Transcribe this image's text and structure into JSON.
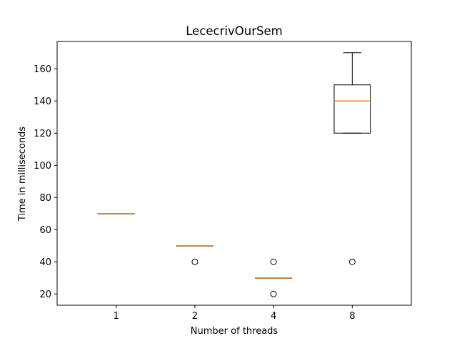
{
  "chart_data": {
    "type": "box",
    "title": "LececrivOurSem",
    "xlabel": "Number of threads",
    "ylabel": "Time in milliseconds",
    "categories": [
      "1",
      "2",
      "4",
      "8"
    ],
    "ylim": [
      13,
      177
    ],
    "yticks": [
      20,
      40,
      60,
      80,
      100,
      120,
      140,
      160
    ],
    "grid": false,
    "boxes": [
      {
        "category": "1",
        "whisker_low": 70,
        "q1": 70,
        "median": 70,
        "q3": 70,
        "whisker_high": 70,
        "outliers": []
      },
      {
        "category": "2",
        "whisker_low": 50,
        "q1": 50,
        "median": 50,
        "q3": 50,
        "whisker_high": 50,
        "outliers": [
          40
        ]
      },
      {
        "category": "4",
        "whisker_low": 30,
        "q1": 30,
        "median": 30,
        "q3": 30,
        "whisker_high": 30,
        "outliers": [
          40,
          20
        ]
      },
      {
        "category": "8",
        "whisker_low": 120,
        "q1": 120,
        "median": 140,
        "q3": 150,
        "whisker_high": 170,
        "outliers": [
          40
        ]
      }
    ],
    "colors": {
      "box": "#000000",
      "median": "#ff7f0e",
      "outlier_edge": "#000000"
    }
  }
}
